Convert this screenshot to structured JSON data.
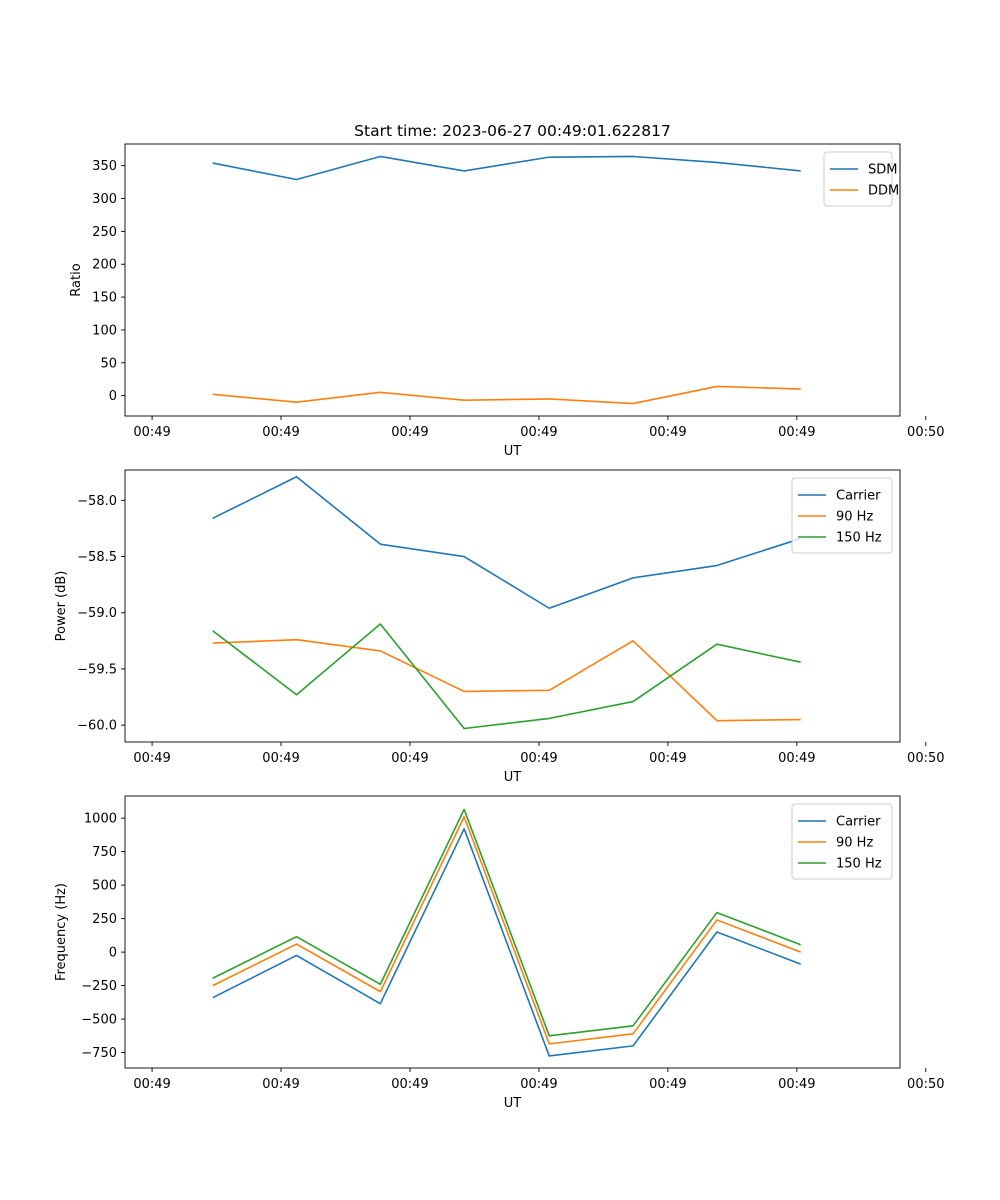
{
  "figure": {
    "title": "Start time: 2023-06-27 00:49:01.622817"
  },
  "chart_data": [
    {
      "type": "line",
      "title": "Start time: 2023-06-27 00:49:01.622817",
      "xlabel": "UT",
      "ylabel": "Ratio",
      "x_tick_labels": [
        "00:49",
        "00:49",
        "00:49",
        "00:49",
        "00:49",
        "00:49",
        "00:50"
      ],
      "y_ticks": [
        0,
        50,
        100,
        150,
        200,
        250,
        300,
        350
      ],
      "y_tick_labels": [
        "0",
        "50",
        "100",
        "150",
        "200",
        "250",
        "300",
        "350"
      ],
      "xlim": [
        -0.21,
        5.8
      ],
      "ylim": [
        -31,
        383
      ],
      "x": [
        0.47,
        1.12,
        1.77,
        2.42,
        3.08,
        3.73,
        4.38,
        5.03
      ],
      "legend": "top-right",
      "series": [
        {
          "name": "SDM",
          "color": "#1f77b4",
          "values": [
            354,
            329,
            364,
            342,
            363,
            364,
            355,
            342
          ]
        },
        {
          "name": "DDM",
          "color": "#ff7f0e",
          "values": [
            2,
            -10,
            5,
            -7,
            -5,
            -12,
            14,
            10
          ]
        }
      ]
    },
    {
      "type": "line",
      "xlabel": "UT",
      "ylabel": "Power (dB)",
      "x_tick_labels": [
        "00:49",
        "00:49",
        "00:49",
        "00:49",
        "00:49",
        "00:49",
        "00:50"
      ],
      "y_ticks": [
        -58.0,
        -58.5,
        -59.0,
        -59.5,
        -60.0
      ],
      "y_tick_labels": [
        "−58.0",
        "−58.5",
        "−59.0",
        "−59.5",
        "−60.0"
      ],
      "xlim": [
        -0.21,
        5.8
      ],
      "ylim": [
        -60.15,
        -57.73
      ],
      "x": [
        0.47,
        1.12,
        1.77,
        2.42,
        3.08,
        3.73,
        4.38,
        5.03
      ],
      "legend": "top-right",
      "series": [
        {
          "name": "Carrier",
          "color": "#1f77b4",
          "values": [
            -58.16,
            -57.79,
            -58.39,
            -58.5,
            -58.96,
            -58.69,
            -58.58,
            -58.34
          ]
        },
        {
          "name": "90 Hz",
          "color": "#ff7f0e",
          "values": [
            -59.27,
            -59.24,
            -59.34,
            -59.7,
            -59.69,
            -59.25,
            -59.96,
            -59.95
          ]
        },
        {
          "name": "150 Hz",
          "color": "#2ca02c",
          "values": [
            -59.16,
            -59.73,
            -59.1,
            -60.03,
            -59.94,
            -59.79,
            -59.28,
            -59.44
          ]
        }
      ]
    },
    {
      "type": "line",
      "xlabel": "UT",
      "ylabel": "Frequency (Hz)",
      "x_tick_labels": [
        "00:49",
        "00:49",
        "00:49",
        "00:49",
        "00:49",
        "00:49",
        "00:50"
      ],
      "y_ticks": [
        1000,
        750,
        500,
        250,
        0,
        -250,
        -500,
        -750
      ],
      "y_tick_labels": [
        "1000",
        "750",
        "500",
        "250",
        "0",
        "−250",
        "−500",
        "−750"
      ],
      "xlim": [
        -0.21,
        5.8
      ],
      "ylim": [
        -865,
        1165
      ],
      "x": [
        0.47,
        1.12,
        1.77,
        2.42,
        3.08,
        3.73,
        4.38,
        5.03
      ],
      "legend": "top-right",
      "series": [
        {
          "name": "Carrier",
          "color": "#1f77b4",
          "values": [
            -340,
            -25,
            -385,
            920,
            -775,
            -700,
            150,
            -90
          ]
        },
        {
          "name": "90 Hz",
          "color": "#ff7f0e",
          "values": [
            -250,
            60,
            -295,
            1010,
            -685,
            -610,
            240,
            0
          ]
        },
        {
          "name": "150 Hz",
          "color": "#2ca02c",
          "values": [
            -195,
            115,
            -240,
            1065,
            -625,
            -550,
            295,
            55
          ]
        }
      ]
    }
  ]
}
